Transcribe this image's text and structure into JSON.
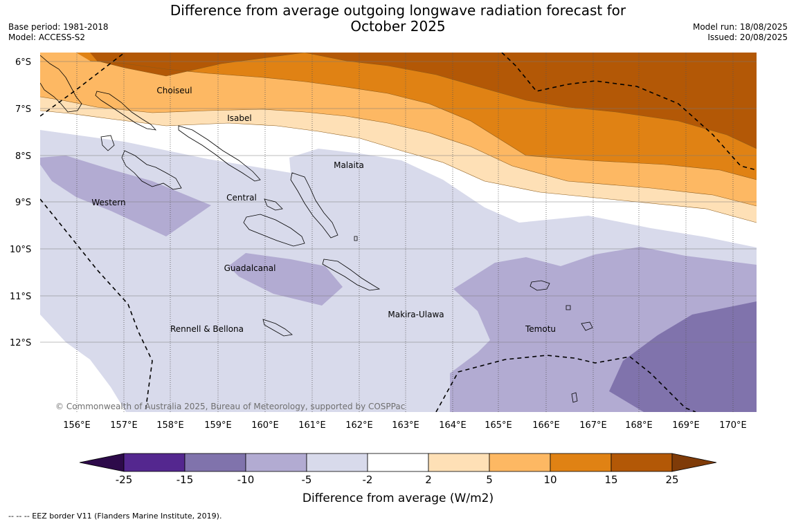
{
  "title_line1": "Difference from average outgoing longwave radiation forecast for",
  "title_line2": "October 2025",
  "meta_left": [
    "Base period: 1981-2018",
    "Model: ACCESS-S2"
  ],
  "meta_right": [
    "Model run: 18/08/2025",
    "Issued: 20/08/2025"
  ],
  "map": {
    "lat_labels": [
      "6°S",
      "7°S",
      "8°S",
      "9°S",
      "10°S",
      "11°S",
      "12°S"
    ],
    "lon_labels": [
      "156°E",
      "157°E",
      "158°E",
      "159°E",
      "160°E",
      "161°E",
      "162°E",
      "163°E",
      "164°E",
      "165°E",
      "166°E",
      "167°E",
      "168°E",
      "169°E",
      "170°E"
    ],
    "places": [
      "Choiseul",
      "Isabel",
      "Malaita",
      "Western",
      "Central",
      "Guadalcanal",
      "Makira-Ulawa",
      "Temotu",
      "Rennell & Bellona"
    ],
    "copyright": "© Commonwealth of Australia 2025, Bureau of Meteorology, supported by COSPPac"
  },
  "colorbar": {
    "ticks": [
      "-25",
      "-15",
      "-10",
      "-5",
      "-2",
      "2",
      "5",
      "10",
      "15",
      "25"
    ],
    "colors": [
      "#2d0a4a",
      "#54278f",
      "#8073ac",
      "#b2abd2",
      "#d8daeb",
      "#ffffff",
      "#fee0b6",
      "#fdb863",
      "#e08214",
      "#b35806",
      "#7f3b08"
    ],
    "label": "Difference from average (W/m2)"
  },
  "footnote": "--  --  -- EEZ border V11 (Flanders Marine Institute, 2019)."
}
